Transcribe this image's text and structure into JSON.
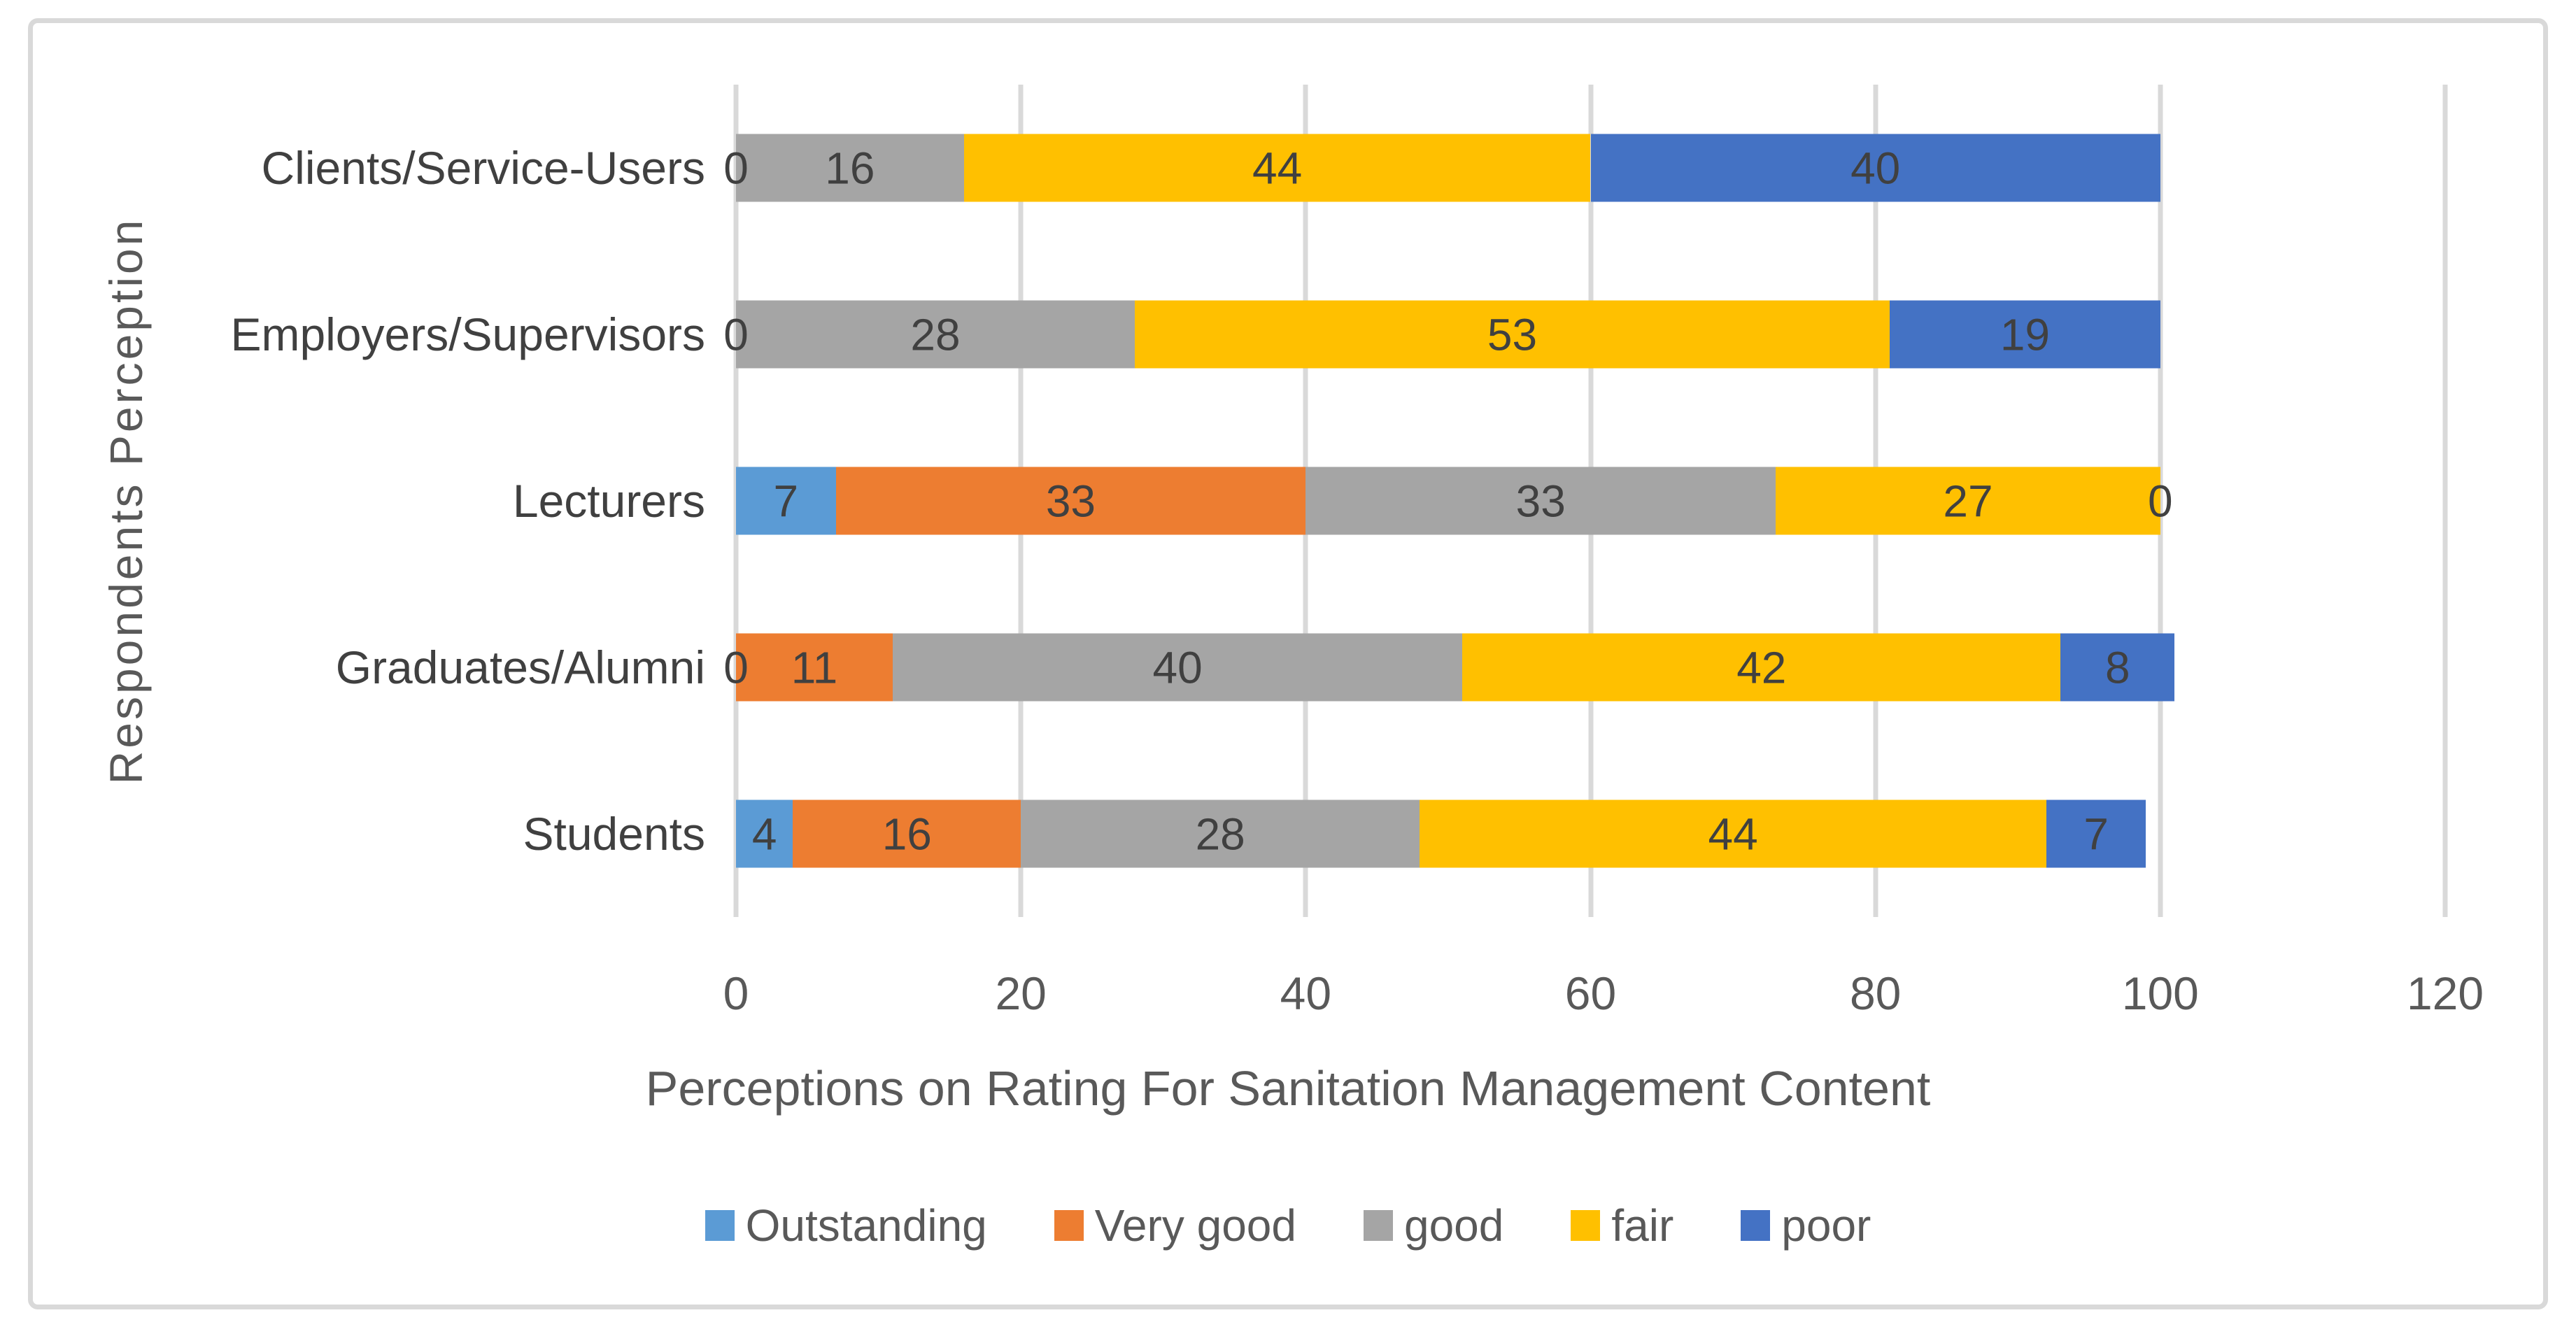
{
  "page": {
    "background": "#FFFFFF",
    "chart_border_color": "#D9D9D9"
  },
  "chart_data": {
    "type": "bar",
    "orientation": "horizontal-stacked",
    "xlabel": "Perceptions on Rating For Sanitation Management Content",
    "ylabel": "Respondents Perception",
    "categories": [
      "Clients/Service-Users",
      "Employers/Supervisors",
      "Lecturers",
      "Graduates/Alumni",
      "Students"
    ],
    "series": [
      {
        "name": "Outstanding",
        "color": "#5B9BD5",
        "values": [
          0,
          0,
          7,
          0,
          4
        ]
      },
      {
        "name": "Very good",
        "color": "#ED7D31",
        "values": [
          0,
          0,
          33,
          11,
          16
        ]
      },
      {
        "name": "good",
        "color": "#A5A5A5",
        "values": [
          16,
          28,
          33,
          40,
          28
        ]
      },
      {
        "name": "fair",
        "color": "#FFC000",
        "values": [
          44,
          53,
          27,
          42,
          44
        ]
      },
      {
        "name": "poor",
        "color": "#4472C4",
        "values": [
          40,
          19,
          0,
          8,
          7
        ]
      }
    ],
    "xlim": [
      0,
      120
    ],
    "xticks": [
      0,
      20,
      40,
      60,
      80,
      100,
      120
    ],
    "grid": "vertical",
    "gridline_color": "#D9D9D9",
    "axis_line_color": "#D9D9D9",
    "data_labels_shown": true,
    "data_label_color": "#404040",
    "axis_text_color": "#595959",
    "legend_position": "bottom"
  }
}
